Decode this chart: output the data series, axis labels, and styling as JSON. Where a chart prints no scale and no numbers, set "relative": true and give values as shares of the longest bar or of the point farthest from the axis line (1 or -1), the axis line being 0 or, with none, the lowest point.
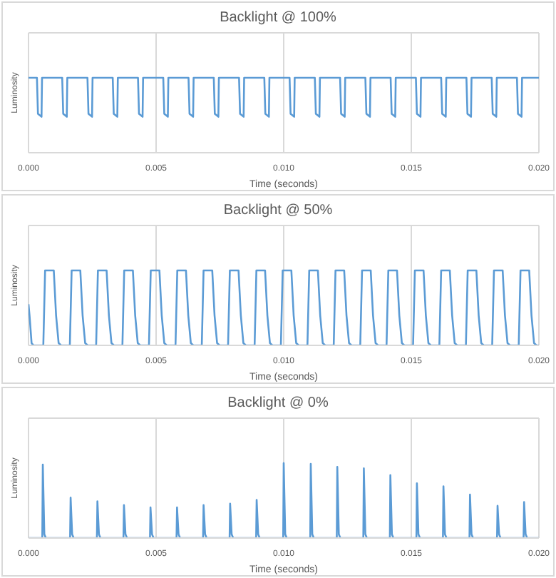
{
  "chart_data": [
    {
      "type": "line",
      "title": "Backlight @ 100%",
      "xlabel": "Time (seconds)",
      "ylabel": "Luminosity",
      "relative": true,
      "grid": true,
      "tick_labels": "x",
      "xlim": [
        0,
        0.02
      ],
      "xticks": [
        {
          "value": 0,
          "label": "0.000"
        },
        {
          "value": 0.005,
          "label": "0.005"
        },
        {
          "value": 0.01,
          "label": "0.010"
        },
        {
          "value": 0.015,
          "label": "0.015"
        },
        {
          "value": 0.02,
          "label": "0.020"
        }
      ],
      "series": [
        {
          "color": "#5b9bd5",
          "x": [
            0,
            0.00033,
            0.00037,
            0.00051,
            0.00053,
            0.00132,
            0.00136,
            0.0015,
            0.00152,
            0.00231,
            0.00235,
            0.00249,
            0.00251,
            0.0033,
            0.00334,
            0.00348,
            0.0035,
            0.00429,
            0.00433,
            0.00447,
            0.00449,
            0.00528,
            0.00532,
            0.00546,
            0.00548,
            0.00627,
            0.00631,
            0.00645,
            0.00647,
            0.00726,
            0.0073,
            0.00744,
            0.00746,
            0.00825,
            0.00829,
            0.00843,
            0.00845,
            0.00924,
            0.00928,
            0.00942,
            0.00944,
            0.01023,
            0.01027,
            0.01041,
            0.01043,
            0.01122,
            0.01126,
            0.0114,
            0.01142,
            0.01221,
            0.01225,
            0.01239,
            0.01241,
            0.0132,
            0.01324,
            0.01338,
            0.0134,
            0.01419,
            0.01423,
            0.01437,
            0.01439,
            0.01518,
            0.01522,
            0.01536,
            0.01538,
            0.01617,
            0.01621,
            0.01635,
            0.01637,
            0.01716,
            0.0172,
            0.01734,
            0.01736,
            0.01815,
            0.01819,
            0.01833,
            0.01835,
            0.01914,
            0.01918,
            0.01932,
            0.01934,
            0.02
          ],
          "values": [
            1,
            1,
            0.52,
            0.48,
            1,
            1,
            0.52,
            0.48,
            1,
            1,
            0.52,
            0.48,
            1,
            1,
            0.52,
            0.48,
            1,
            1,
            0.52,
            0.48,
            1,
            1,
            0.52,
            0.48,
            1,
            1,
            0.52,
            0.48,
            1,
            1,
            0.52,
            0.48,
            1,
            1,
            0.52,
            0.48,
            1,
            1,
            0.52,
            0.48,
            1,
            1,
            0.52,
            0.48,
            1,
            1,
            0.52,
            0.48,
            1,
            1,
            0.52,
            0.48,
            1,
            1,
            0.52,
            0.48,
            1,
            1,
            0.52,
            0.48,
            1,
            1,
            0.52,
            0.48,
            1,
            1,
            0.52,
            0.48,
            1,
            1,
            0.52,
            0.48,
            1,
            1,
            0.52,
            0.48,
            1,
            1,
            0.52,
            0.48,
            1,
            1
          ]
        }
      ]
    },
    {
      "type": "line",
      "title": "Backlight @ 50%",
      "xlabel": "Time (seconds)",
      "ylabel": "Luminosity",
      "relative": true,
      "grid": true,
      "tick_labels": "x",
      "xlim": [
        0,
        0.02
      ],
      "xticks": [
        {
          "value": 0,
          "label": "0.000"
        },
        {
          "value": 0.005,
          "label": "0.005"
        },
        {
          "value": 0.01,
          "label": "0.010"
        },
        {
          "value": 0.015,
          "label": "0.015"
        },
        {
          "value": 0.02,
          "label": "0.020"
        }
      ],
      "series": [
        {
          "color": "#5b9bd5",
          "x": [
            0,
            4e-05,
            0.00012,
            0.0002,
            0.00058,
            0.00065,
            0.00099,
            0.00108,
            0.00118,
            0.00128,
            0.00162,
            0.00169,
            0.00203,
            0.00212,
            0.00222,
            0.00232,
            0.00265,
            0.00272,
            0.00306,
            0.00315,
            0.00325,
            0.00335,
            0.00368,
            0.00375,
            0.00409,
            0.00418,
            0.00428,
            0.00438,
            0.00472,
            0.00479,
            0.00513,
            0.00522,
            0.00532,
            0.00542,
            0.00576,
            0.00583,
            0.00617,
            0.00626,
            0.00636,
            0.00646,
            0.00679,
            0.00686,
            0.0072,
            0.00729,
            0.00739,
            0.00749,
            0.00782,
            0.00789,
            0.00823,
            0.00832,
            0.00842,
            0.00852,
            0.00886,
            0.00893,
            0.00927,
            0.00936,
            0.00946,
            0.00956,
            0.00989,
            0.00996,
            0.0103,
            0.01039,
            0.01049,
            0.01059,
            0.01093,
            0.011,
            0.01134,
            0.01143,
            0.01153,
            0.01163,
            0.01196,
            0.01203,
            0.01237,
            0.01246,
            0.01256,
            0.01266,
            0.013,
            0.01307,
            0.01341,
            0.0135,
            0.0136,
            0.0137,
            0.01403,
            0.0141,
            0.01444,
            0.01453,
            0.01463,
            0.01473,
            0.01507,
            0.01514,
            0.01548,
            0.01557,
            0.01567,
            0.01577,
            0.0161,
            0.01617,
            0.01651,
            0.0166,
            0.0167,
            0.0168,
            0.01714,
            0.01721,
            0.01755,
            0.01764,
            0.01774,
            0.01784,
            0.01817,
            0.01824,
            0.01858,
            0.01867,
            0.01877,
            0.01887,
            0.01921,
            0.01928,
            0.01962,
            0.01971,
            0.01981,
            0.01991,
            0.02
          ],
          "values": [
            0.55,
            0.4,
            0.03,
            0,
            0,
            1,
            1,
            0.4,
            0.03,
            0,
            0,
            1,
            1,
            0.4,
            0.03,
            0,
            0,
            1,
            1,
            0.4,
            0.03,
            0,
            0,
            1,
            1,
            0.4,
            0.03,
            0,
            0,
            1,
            1,
            0.4,
            0.03,
            0,
            0,
            1,
            1,
            0.4,
            0.03,
            0,
            0,
            1,
            1,
            0.4,
            0.03,
            0,
            0,
            1,
            1,
            0.4,
            0.03,
            0,
            0,
            1,
            1,
            0.4,
            0.03,
            0,
            0,
            1,
            1,
            0.4,
            0.03,
            0,
            0,
            1,
            1,
            0.4,
            0.03,
            0,
            0,
            1,
            1,
            0.4,
            0.03,
            0,
            0,
            1,
            1,
            0.4,
            0.03,
            0,
            0,
            1,
            1,
            0.4,
            0.03,
            0,
            0,
            1,
            1,
            0.4,
            0.03,
            0,
            0,
            1,
            1,
            0.4,
            0.03,
            0,
            0,
            1,
            1,
            0.4,
            0.03,
            0,
            0,
            1,
            1,
            0.4,
            0.03,
            0,
            0,
            1,
            1,
            0.4,
            0.03,
            0,
            0
          ]
        }
      ]
    },
    {
      "type": "line",
      "title": "Backlight @ 0%",
      "xlabel": "Time (seconds)",
      "ylabel": "Luminosity",
      "relative": true,
      "grid": true,
      "tick_labels": "x",
      "xlim": [
        0,
        0.02
      ],
      "xticks": [
        {
          "value": 0,
          "label": "0.000"
        },
        {
          "value": 0.005,
          "label": "0.005"
        },
        {
          "value": 0.01,
          "label": "0.010"
        },
        {
          "value": 0.015,
          "label": "0.015"
        },
        {
          "value": 0.02,
          "label": "0.020"
        }
      ],
      "series": [
        {
          "color": "#5b9bd5",
          "x": [
            0,
            0.00054,
            0.00056,
            0.00062,
            0.00068,
            0.00163,
            0.00165,
            0.00171,
            0.00177,
            0.00268,
            0.0027,
            0.00276,
            0.00282,
            0.00372,
            0.00374,
            0.0038,
            0.00386,
            0.00476,
            0.00478,
            0.00484,
            0.0049,
            0.0058,
            0.00582,
            0.00588,
            0.00594,
            0.00684,
            0.00686,
            0.00692,
            0.00698,
            0.00788,
            0.0079,
            0.00796,
            0.00802,
            0.00892,
            0.00894,
            0.009,
            0.00906,
            0.00998,
            0.01,
            0.01006,
            0.01012,
            0.01104,
            0.01106,
            0.01112,
            0.01118,
            0.01208,
            0.0121,
            0.01216,
            0.01222,
            0.01312,
            0.01314,
            0.0132,
            0.01326,
            0.01416,
            0.01418,
            0.01424,
            0.0143,
            0.0152,
            0.01522,
            0.01528,
            0.01534,
            0.01624,
            0.01626,
            0.01632,
            0.01638,
            0.01728,
            0.0173,
            0.01736,
            0.01742,
            0.01836,
            0.01838,
            0.01844,
            0.0185,
            0.0194,
            0.01942,
            0.01948,
            0.01954,
            0.02
          ],
          "values": [
            0,
            0,
            0.98,
            0.05,
            0,
            0,
            0.54,
            0.05,
            0,
            0,
            0.49,
            0.05,
            0,
            0,
            0.44,
            0.05,
            0,
            0,
            0.41,
            0.05,
            0,
            0,
            0.41,
            0.05,
            0,
            0,
            0.44,
            0.05,
            0,
            0,
            0.46,
            0.05,
            0,
            0,
            0.51,
            0.05,
            0,
            0,
            1,
            0.05,
            0,
            0,
            0.99,
            0.05,
            0,
            0,
            0.95,
            0.05,
            0,
            0,
            0.93,
            0.05,
            0,
            0,
            0.84,
            0.05,
            0,
            0,
            0.73,
            0.05,
            0,
            0,
            0.69,
            0.05,
            0,
            0,
            0.58,
            0.05,
            0,
            0,
            0.43,
            0.05,
            0,
            0,
            0.48,
            0.05,
            0,
            0
          ]
        }
      ]
    }
  ]
}
